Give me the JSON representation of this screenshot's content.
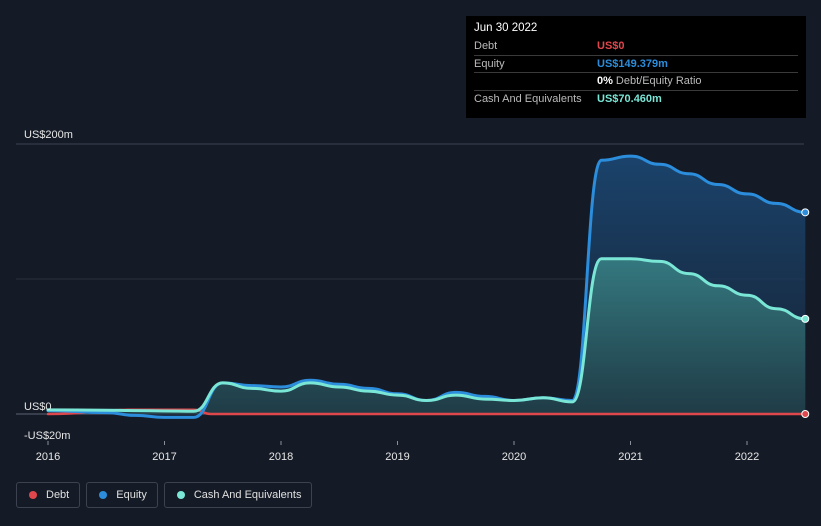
{
  "tooltip": {
    "date": "Jun 30 2022",
    "rows": [
      {
        "label": "Debt",
        "value": "US$0",
        "color": "#e0474c"
      },
      {
        "label": "Equity",
        "value": "US$149.379m",
        "color": "#2b8ddb"
      },
      {
        "ratio_pct": "0%",
        "ratio_text": "Debt/Equity Ratio"
      },
      {
        "label": "Cash And Equivalents",
        "value": "US$70.460m",
        "color": "#7ae6d6"
      }
    ]
  },
  "legend": [
    {
      "label": "Debt",
      "color": "#e0474c"
    },
    {
      "label": "Equity",
      "color": "#2b8ddb"
    },
    {
      "label": "Cash And Equivalents",
      "color": "#7ae6d6"
    }
  ],
  "chart_data": {
    "type": "area",
    "title": "",
    "xlabel": "",
    "ylabel": "",
    "ylim": [
      -20,
      200
    ],
    "xlim": [
      2015.9,
      2022.5
    ],
    "y_tick_labels": [
      {
        "value": 200,
        "label": "US$200m"
      },
      {
        "value": 0,
        "label": "US$0"
      },
      {
        "value": -20,
        "label": "-US$20m"
      }
    ],
    "x_tick_labels": [
      "2016",
      "2017",
      "2018",
      "2019",
      "2020",
      "2021",
      "2022"
    ],
    "x_ticks": [
      2016,
      2017,
      2018,
      2019,
      2020,
      2021,
      2022
    ],
    "series": [
      {
        "name": "Equity",
        "color": "#2b8ddb",
        "x": [
          2016.0,
          2016.5,
          2016.75,
          2017.0,
          2017.25,
          2017.5,
          2017.75,
          2018.0,
          2018.25,
          2018.5,
          2018.75,
          2019.0,
          2019.25,
          2019.5,
          2019.75,
          2020.0,
          2020.25,
          2020.5,
          2020.75,
          2021.0,
          2021.25,
          2021.5,
          2021.75,
          2022.0,
          2022.25,
          2022.5
        ],
        "values": [
          2.5,
          1.0,
          -1.0,
          -2.5,
          -2.5,
          23,
          21,
          20,
          25,
          22,
          19,
          15,
          10,
          16,
          13,
          10,
          12,
          10,
          188,
          191,
          185,
          178,
          170,
          163,
          156,
          149.379
        ]
      },
      {
        "name": "Cash And Equivalents",
        "color": "#7ae6d6",
        "x": [
          2016.0,
          2016.5,
          2016.75,
          2017.0,
          2017.25,
          2017.5,
          2017.75,
          2018.0,
          2018.25,
          2018.5,
          2018.75,
          2019.0,
          2019.25,
          2019.5,
          2019.75,
          2020.0,
          2020.25,
          2020.5,
          2020.75,
          2021.0,
          2021.25,
          2021.5,
          2021.75,
          2022.0,
          2022.25,
          2022.5
        ],
        "values": [
          3,
          2.8,
          2.5,
          2.2,
          2.0,
          23,
          19,
          17,
          23,
          20,
          17,
          14,
          10,
          14,
          11,
          10,
          12,
          9,
          115,
          115,
          113,
          104,
          95,
          88,
          78,
          70.46
        ]
      },
      {
        "name": "Debt",
        "color": "#e0474c",
        "x": [
          2016.0,
          2016.75,
          2017.0,
          2017.25,
          2017.4,
          2018.0,
          2019.0,
          2020.0,
          2021.0,
          2022.0,
          2022.5
        ],
        "values": [
          0,
          3.2,
          3.2,
          3.2,
          0,
          0,
          0,
          0,
          0,
          0,
          0
        ]
      }
    ]
  }
}
